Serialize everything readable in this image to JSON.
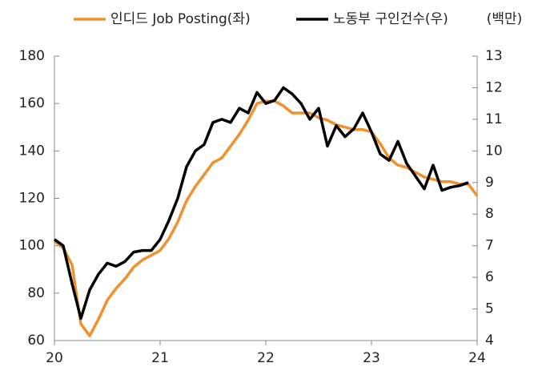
{
  "chart_data": {
    "type": "line",
    "unit_label": "(백만)",
    "categories": [
      "20",
      null,
      null,
      null,
      null,
      null,
      null,
      null,
      null,
      null,
      null,
      null,
      "21",
      null,
      null,
      null,
      null,
      null,
      null,
      null,
      null,
      null,
      null,
      null,
      "22",
      null,
      null,
      null,
      null,
      null,
      null,
      null,
      null,
      null,
      null,
      null,
      "23",
      null,
      null,
      null,
      null,
      null,
      null,
      null,
      null,
      null,
      null,
      null,
      "24"
    ],
    "series": [
      {
        "name": "인디드 Job Posting(좌)",
        "color": "#f0902e",
        "axis": "y",
        "values": [
          102,
          99,
          92,
          67,
          62,
          69,
          77,
          82,
          86,
          91,
          94,
          96,
          98,
          103,
          110,
          119,
          125,
          130,
          135,
          137,
          142,
          147,
          153,
          160,
          161,
          161,
          159,
          156,
          156,
          156,
          154,
          153,
          151,
          150,
          149,
          149,
          148,
          143,
          137,
          134,
          133,
          131,
          129,
          128,
          127,
          127,
          126,
          126,
          121
        ]
      },
      {
        "name": "노동부 구인건수(우)",
        "color": "#000000",
        "axis": "y2",
        "values": [
          7.2,
          7.0,
          5.8,
          4.7,
          5.6,
          6.1,
          6.45,
          6.35,
          6.5,
          6.8,
          6.85,
          6.85,
          7.2,
          7.8,
          8.5,
          9.5,
          10.0,
          10.2,
          10.9,
          11.0,
          10.9,
          11.35,
          11.2,
          11.85,
          11.5,
          11.6,
          12.0,
          11.8,
          11.5,
          11.0,
          11.35,
          10.15,
          10.8,
          10.45,
          10.7,
          11.2,
          10.6,
          9.9,
          9.7,
          10.3,
          9.6,
          9.2,
          8.8,
          9.55,
          8.75,
          8.85,
          8.9,
          9.0,
          null
        ]
      }
    ],
    "ylim": [
      60,
      180
    ],
    "yticks": [
      60,
      80,
      100,
      120,
      140,
      160,
      180
    ],
    "y2lim": [
      4,
      13
    ],
    "y2ticks": [
      4,
      5,
      6,
      7,
      8,
      9,
      10,
      11,
      12,
      13
    ]
  }
}
